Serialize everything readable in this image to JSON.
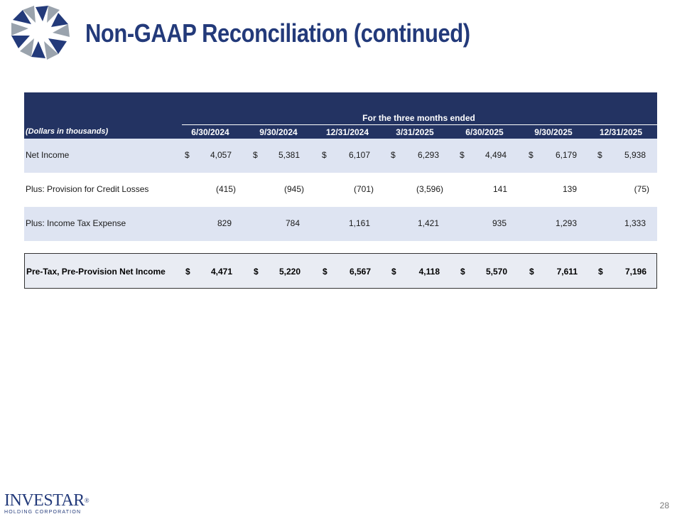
{
  "slide": {
    "title": "Non-GAAP Reconciliation (continued)",
    "page_number": "28"
  },
  "footer": {
    "brand": "INVESTAR",
    "brand_mark": "®",
    "subtitle": "HOLDING CORPORATION"
  },
  "table": {
    "super_header": "For the three months ended",
    "units_label": "(Dollars in thousands)",
    "columns": [
      "6/30/2024",
      "9/30/2024",
      "12/31/2024",
      "3/31/2025",
      "6/30/2025",
      "9/30/2025",
      "12/31/2025"
    ],
    "rows": [
      {
        "label": "Net Income",
        "dollar": "$",
        "values": [
          "4,057",
          "5,381",
          "6,107",
          "6,293",
          "4,494",
          "6,179",
          "5,938"
        ]
      },
      {
        "label": "Plus: Provision for Credit Losses",
        "dollar": "",
        "values": [
          "(415)",
          "(945)",
          "(701)",
          "(3,596)",
          "141",
          "139",
          "(75)"
        ]
      },
      {
        "label": "Plus: Income Tax Expense",
        "dollar": "",
        "values": [
          "829",
          "784",
          "1,161",
          "1,421",
          "935",
          "1,293",
          "1,333"
        ]
      }
    ],
    "total": {
      "label": "Pre-Tax, Pre-Provision Net Income",
      "dollar": "$",
      "values": [
        "4,471",
        "5,220",
        "6,567",
        "4,118",
        "5,570",
        "7,611",
        "7,196"
      ]
    }
  },
  "colors": {
    "header_bg": "#233362",
    "title": "#233a7a",
    "row_shade": "#dee4f2"
  }
}
